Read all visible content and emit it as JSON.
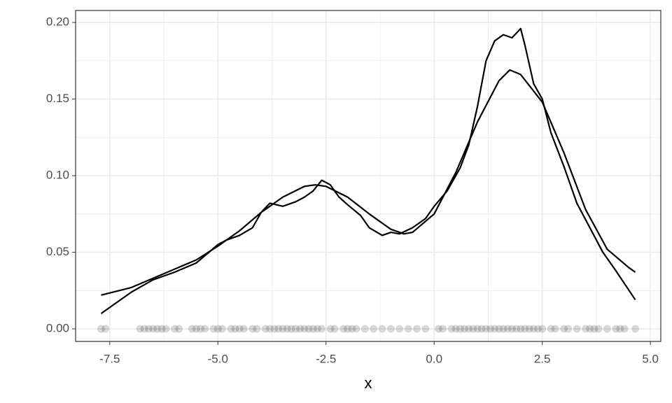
{
  "chart_data": {
    "type": "line",
    "x_label": "x",
    "xlim": [
      -8.29,
      5.24
    ],
    "ylim": [
      -0.0082,
      0.2078
    ],
    "xticks": [
      -7.5,
      {
        "value": -5,
        "label": "-5.0"
      },
      -2.5,
      {
        "value": 0,
        "label": "0.0"
      },
      2.5,
      {
        "value": 5,
        "label": "5.0"
      }
    ],
    "yticks": [
      {
        "value": 0,
        "label": "0.00"
      },
      {
        "value": 0.05,
        "label": "0.05"
      },
      {
        "value": 0.1,
        "label": "0.10"
      },
      {
        "value": 0.15,
        "label": "0.15"
      },
      {
        "value": 0.2,
        "label": "0.20"
      }
    ],
    "grid": true,
    "series": [
      {
        "color": "#000000",
        "x": [
          -7.7,
          -7,
          -6.5,
          -6,
          -5.5,
          -5,
          -4.5,
          -4,
          -3.5,
          -3,
          -2.75,
          -2.5,
          -2,
          -1.5,
          -1,
          -0.7,
          -0.5,
          0,
          0.5,
          1,
          1.5,
          1.75,
          2,
          2.5,
          3,
          3.5,
          4,
          4.5,
          4.65
        ],
        "values": [
          0.022,
          0.027,
          0.033,
          0.039,
          0.045,
          0.054,
          0.064,
          0.076,
          0.086,
          0.093,
          0.094,
          0.093,
          0.086,
          0.075,
          0.065,
          0.062,
          0.063,
          0.075,
          0.102,
          0.135,
          0.162,
          0.169,
          0.166,
          0.148,
          0.115,
          0.078,
          0.052,
          0.04,
          0.037
        ]
      },
      {
        "color": "#000000",
        "x": [
          -7.7,
          -7,
          -6.5,
          -6,
          -5.5,
          -5,
          -4.8,
          -4.5,
          -4.2,
          -4,
          -3.8,
          -3.5,
          -3.2,
          -3,
          -2.8,
          -2.6,
          -2.4,
          -2.2,
          -2,
          -1.7,
          -1.5,
          -1.2,
          -1,
          -0.8,
          -0.5,
          -0.2,
          0,
          0.3,
          0.6,
          0.8,
          1,
          1.2,
          1.4,
          1.6,
          1.8,
          2,
          2.1,
          2.3,
          2.5,
          2.7,
          3,
          3.3,
          3.6,
          3.9,
          4.2,
          4.65
        ],
        "values": [
          0.01,
          0.024,
          0.032,
          0.037,
          0.043,
          0.055,
          0.058,
          0.061,
          0.066,
          0.076,
          0.082,
          0.08,
          0.083,
          0.086,
          0.09,
          0.097,
          0.094,
          0.086,
          0.081,
          0.074,
          0.066,
          0.061,
          0.063,
          0.062,
          0.066,
          0.072,
          0.08,
          0.09,
          0.105,
          0.12,
          0.145,
          0.175,
          0.188,
          0.192,
          0.19,
          0.196,
          0.185,
          0.16,
          0.15,
          0.128,
          0.106,
          0.082,
          0.066,
          0.05,
          0.038,
          0.019
        ]
      }
    ],
    "points": {
      "color": "#000000",
      "alpha": 0.15,
      "x": [
        -7.7,
        -7.6,
        -6.8,
        -6.7,
        -6.6,
        -6.5,
        -6.4,
        -6.3,
        -6.2,
        -6.0,
        -5.9,
        -5.6,
        -5.5,
        -5.4,
        -5.3,
        -5.1,
        -5.0,
        -4.9,
        -4.7,
        -4.6,
        -4.5,
        -4.4,
        -4.2,
        -4.1,
        -3.9,
        -3.8,
        -3.7,
        -3.6,
        -3.5,
        -3.4,
        -3.3,
        -3.2,
        -3.1,
        -3.0,
        -2.9,
        -2.8,
        -2.7,
        -2.6,
        -2.4,
        -2.3,
        -2.1,
        -2.0,
        -1.9,
        -1.8,
        -1.6,
        -1.4,
        -1.2,
        -1.0,
        -0.8,
        -0.6,
        -0.4,
        -0.2,
        0.1,
        0.2,
        0.4,
        0.5,
        0.6,
        0.7,
        0.8,
        0.9,
        1.0,
        1.1,
        1.2,
        1.3,
        1.4,
        1.5,
        1.6,
        1.7,
        1.8,
        1.9,
        2.0,
        2.1,
        2.2,
        2.3,
        2.4,
        2.5,
        2.7,
        2.8,
        3.0,
        3.1,
        3.3,
        3.5,
        3.6,
        3.7,
        3.8,
        4.0,
        4.2,
        4.3,
        4.4,
        4.65
      ],
      "values": [
        0,
        0,
        0,
        0,
        0,
        0,
        0,
        0,
        0,
        0,
        0,
        0,
        0,
        0,
        0,
        0,
        0,
        0,
        0,
        0,
        0,
        0,
        0,
        0,
        0,
        0,
        0,
        0,
        0,
        0,
        0,
        0,
        0,
        0,
        0,
        0,
        0,
        0,
        0,
        0,
        0,
        0,
        0,
        0,
        0,
        0,
        0,
        0,
        0,
        0,
        0,
        0,
        0,
        0,
        0,
        0,
        0,
        0,
        0,
        0,
        0,
        0,
        0,
        0,
        0,
        0,
        0,
        0,
        0,
        0,
        0,
        0,
        0,
        0,
        0,
        0,
        0,
        0,
        0,
        0,
        0,
        0,
        0,
        0,
        0,
        0,
        0,
        0,
        0,
        0
      ]
    }
  }
}
